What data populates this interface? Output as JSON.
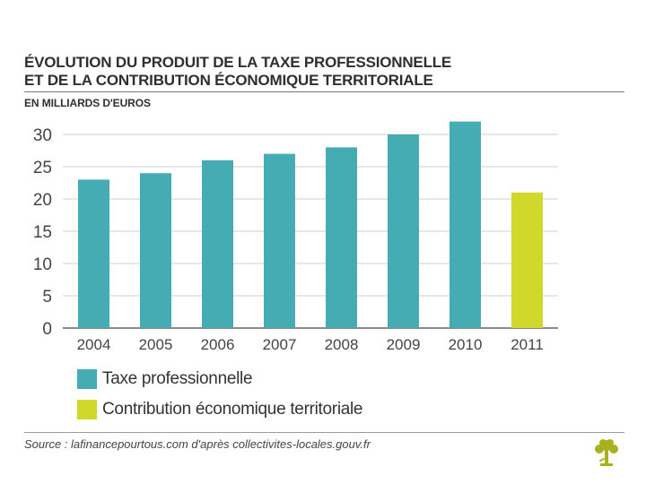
{
  "header": {
    "title_line1": "ÉVOLUTION DU PRODUIT DE LA TAXE PROFESSIONNELLE",
    "title_line2": "ET DE LA CONTRIBUTION ÉCONOMIQUE TERRITORIALE",
    "subtitle": "EN MILLIARDS D'EUROS"
  },
  "chart_data": {
    "type": "bar",
    "title": "ÉVOLUTION DU PRODUIT DE LA TAXE PROFESSIONNELLE ET DE LA CONTRIBUTION ÉCONOMIQUE TERRITORIALE",
    "ylabel": "EN MILLIARDS D'EUROS",
    "xlabel": "",
    "categories": [
      "2004",
      "2005",
      "2006",
      "2007",
      "2008",
      "2009",
      "2010",
      "2011"
    ],
    "series": [
      {
        "name": "Taxe professionnelle",
        "color": "#45acb3",
        "values": [
          23,
          24,
          26,
          27,
          28,
          30,
          32,
          null
        ]
      },
      {
        "name": "Contribution économique territoriale",
        "color": "#d1d82c",
        "values": [
          null,
          null,
          null,
          null,
          null,
          null,
          null,
          21
        ]
      }
    ],
    "ylim": [
      0,
      30
    ],
    "yticks": [
      "0",
      "5",
      "10",
      "15",
      "20",
      "25",
      "30"
    ],
    "grid": true,
    "legend_position": "bottom-left"
  },
  "footer": {
    "source": "Source : lafinancepourtous.com d'après collectivites-locales.gouv.fr",
    "logo_icon": "tree-logo-icon",
    "logo_color": "#a8b21f"
  }
}
